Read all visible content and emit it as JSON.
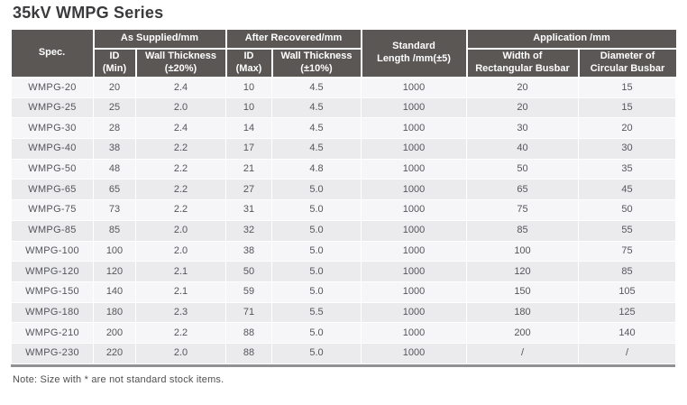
{
  "page": {
    "title": "35kV WMPG Series",
    "note": "Note: Size with * are not standard stock items."
  },
  "colors": {
    "header_bg": "#5a5755",
    "row_light": "#f6f6f8",
    "row_alt": "#ebebed",
    "bottom_bar": "#919194",
    "cell_text": "#55565a",
    "title_text": "#3a3a3c",
    "note_text": "#4f4f51"
  },
  "table": {
    "header": {
      "spec_label": "Spec.",
      "as_supplied": "As Supplied/mm",
      "after_recovered": "After Recovered/mm",
      "standard_length": "Standard\nLength /mm(±5)",
      "application": "Application /mm",
      "id_min": "ID\n(Min)",
      "wall_thickness_20": "Wall Thickness\n(±20%)",
      "id_max": "ID\n(Max)",
      "wall_thickness_10": "Wall Thickness\n(±10%)",
      "width_rect_busbar": "Width of\nRectangular Busbar",
      "diameter_circ_busbar": "Diameter of\nCircular Busbar"
    },
    "columns": [
      "Spec.",
      "ID (Min)",
      "Wall Thickness (±20%)",
      "ID (Max)",
      "Wall Thickness (±10%)",
      "Standard Length /mm(±5)",
      "Width of Rectangular Busbar",
      "Diameter of Circular Busbar"
    ],
    "rows": [
      [
        "WMPG-20",
        "20",
        "2.4",
        "10",
        "4.5",
        "1000",
        "20",
        "15"
      ],
      [
        "WMPG-25",
        "25",
        "2.0",
        "10",
        "4.5",
        "1000",
        "20",
        "15"
      ],
      [
        "WMPG-30",
        "28",
        "2.4",
        "14",
        "4.5",
        "1000",
        "30",
        "20"
      ],
      [
        "WMPG-40",
        "38",
        "2.2",
        "17",
        "4.5",
        "1000",
        "40",
        "30"
      ],
      [
        "WMPG-50",
        "48",
        "2.2",
        "21",
        "4.8",
        "1000",
        "50",
        "35"
      ],
      [
        "WMPG-65",
        "65",
        "2.2",
        "27",
        "5.0",
        "1000",
        "65",
        "45"
      ],
      [
        "WMPG-75",
        "73",
        "2.2",
        "31",
        "5.0",
        "1000",
        "75",
        "50"
      ],
      [
        "WMPG-85",
        "85",
        "2.0",
        "32",
        "5.0",
        "1000",
        "85",
        "55"
      ],
      [
        "WMPG-100",
        "100",
        "2.0",
        "38",
        "5.0",
        "1000",
        "100",
        "75"
      ],
      [
        "WMPG-120",
        "120",
        "2.1",
        "50",
        "5.0",
        "1000",
        "120",
        "85"
      ],
      [
        "WMPG-150",
        "140",
        "2.1",
        "59",
        "5.0",
        "1000",
        "150",
        "105"
      ],
      [
        "WMPG-180",
        "180",
        "2.3",
        "71",
        "5.5",
        "1000",
        "180",
        "125"
      ],
      [
        "WMPG-210",
        "200",
        "2.2",
        "88",
        "5.0",
        "1000",
        "200",
        "140"
      ],
      [
        "WMPG-230",
        "220",
        "2.0",
        "88",
        "5.0",
        "1000",
        "/",
        "/"
      ]
    ]
  }
}
